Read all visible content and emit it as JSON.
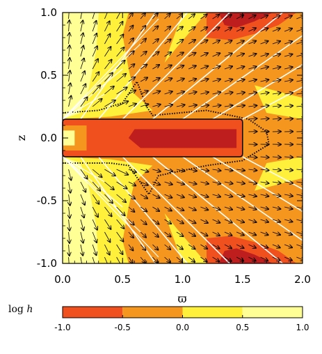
{
  "chart_data": {
    "type": "heatmap",
    "xlabel": "ϖ",
    "ylabel": "z",
    "xlim": [
      0.0,
      2.0
    ],
    "ylim": [
      -1.0,
      1.0
    ],
    "x_ticks": [
      "0.0",
      "0.5",
      "1.0",
      "1.5",
      "2.0"
    ],
    "y_ticks": [
      "-1.0",
      "-0.5",
      "0.0",
      "0.5",
      "1.0"
    ],
    "colorbar": {
      "label": "log h",
      "label_text": "log",
      "label_symbol": "h",
      "range": [
        -1.0,
        1.0
      ],
      "ticks": [
        "-1.0",
        "-0.5",
        "0.0",
        "0.5",
        "1.0"
      ],
      "levels": [
        {
          "from": -1.0,
          "to": -0.5,
          "color": "#f0501e"
        },
        {
          "from": -0.5,
          "to": 0.0,
          "color": "#f5961e"
        },
        {
          "from": 0.0,
          "to": 0.5,
          "color": "#fff03c"
        },
        {
          "from": 0.5,
          "to": 1.0,
          "color": "#ffff96"
        }
      ]
    },
    "overlays": {
      "disk_box": {
        "x": [
          0.0,
          1.5
        ],
        "y": [
          -0.15,
          0.15
        ]
      },
      "field_lines": "white",
      "velocity_vectors": "black arrows",
      "contours": "black dotted"
    },
    "colors": {
      "dark_red": "#be1e1e",
      "red_orange": "#f0501e",
      "orange": "#f5961e",
      "yellow": "#fff03c",
      "pale_yellow": "#ffff96"
    }
  }
}
